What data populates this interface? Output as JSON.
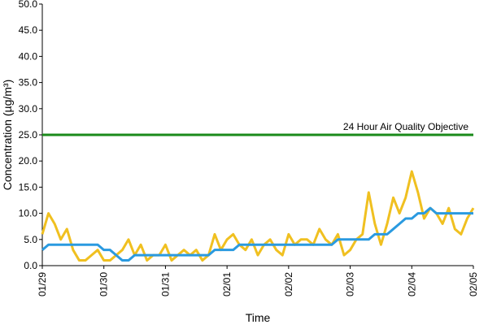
{
  "chart_data": {
    "type": "line",
    "y_label": "Concentration (µg/m³)",
    "x_label": "Time",
    "xlim": [
      0,
      7
    ],
    "xticks": [
      {
        "value": 0,
        "label": "01/29"
      },
      {
        "value": 1,
        "label": "01/30"
      },
      {
        "value": 2,
        "label": "01/31"
      },
      {
        "value": 3,
        "label": "02/01"
      },
      {
        "value": 4,
        "label": "02/02"
      },
      {
        "value": 5,
        "label": "02/03"
      },
      {
        "value": 6,
        "label": "02/04"
      },
      {
        "value": 7,
        "label": "02/05"
      }
    ],
    "ylim": [
      0,
      50
    ],
    "yticks": [
      {
        "value": 0,
        "label": "0.0"
      },
      {
        "value": 5,
        "label": "5.0"
      },
      {
        "value": 10,
        "label": "10.0"
      },
      {
        "value": 15,
        "label": "15.0"
      },
      {
        "value": 20,
        "label": "20.0"
      },
      {
        "value": 25,
        "label": "25.0"
      },
      {
        "value": 30,
        "label": "30.0"
      },
      {
        "value": 35,
        "label": "35.0"
      },
      {
        "value": 40,
        "label": "40.0"
      },
      {
        "value": 45,
        "label": "45.0"
      },
      {
        "value": 50,
        "label": "50.0"
      }
    ],
    "reference_line": {
      "value": 25,
      "label": "24 Hour Air Quality Objective",
      "color": "#1a8a1a"
    },
    "x": [
      0,
      0.1,
      0.2,
      0.3,
      0.4,
      0.5,
      0.6,
      0.7,
      0.8,
      0.9,
      1,
      1.1,
      1.2,
      1.3,
      1.4,
      1.5,
      1.6,
      1.7,
      1.8,
      1.9,
      2,
      2.1,
      2.2,
      2.3,
      2.4,
      2.5,
      2.6,
      2.7,
      2.8,
      2.9,
      3,
      3.1,
      3.2,
      3.3,
      3.4,
      3.5,
      3.6,
      3.7,
      3.8,
      3.9,
      4,
      4.1,
      4.2,
      4.3,
      4.4,
      4.5,
      4.6,
      4.7,
      4.8,
      4.9,
      5,
      5.1,
      5.2,
      5.3,
      5.4,
      5.5,
      5.6,
      5.7,
      5.8,
      5.9,
      6,
      6.1,
      6.2,
      6.3,
      6.4,
      6.5,
      6.6,
      6.7,
      6.8,
      6.9,
      7
    ],
    "series": [
      {
        "color": "#f0c020",
        "values": [
          6,
          10,
          8,
          5,
          7,
          3,
          1,
          1,
          2,
          3,
          1,
          1,
          2,
          3,
          5,
          2,
          4,
          1,
          2,
          2,
          4,
          1,
          2,
          3,
          2,
          3,
          1,
          2,
          6,
          3,
          5,
          6,
          4,
          3,
          5,
          2,
          4,
          5,
          3,
          2,
          6,
          4,
          5,
          5,
          4,
          7,
          5,
          4,
          6,
          2,
          3,
          5,
          6,
          14,
          8,
          4,
          8,
          13,
          10,
          13,
          18,
          14,
          9,
          11,
          10,
          8,
          11,
          7,
          6,
          9,
          11
        ]
      },
      {
        "color": "#2a9ae0",
        "values": [
          3,
          4,
          4,
          4,
          4,
          4,
          4,
          4,
          4,
          4,
          3,
          3,
          2,
          1,
          1,
          2,
          2,
          2,
          2,
          2,
          2,
          2,
          2,
          2,
          2,
          2,
          2,
          2,
          3,
          3,
          3,
          3,
          4,
          4,
          4,
          4,
          4,
          4,
          4,
          4,
          4,
          4,
          4,
          4,
          4,
          4,
          4,
          4,
          5,
          5,
          5,
          5,
          5,
          5,
          6,
          6,
          6,
          7,
          8,
          9,
          9,
          10,
          10,
          11,
          10,
          10,
          10,
          10,
          10,
          10,
          10
        ]
      }
    ]
  }
}
